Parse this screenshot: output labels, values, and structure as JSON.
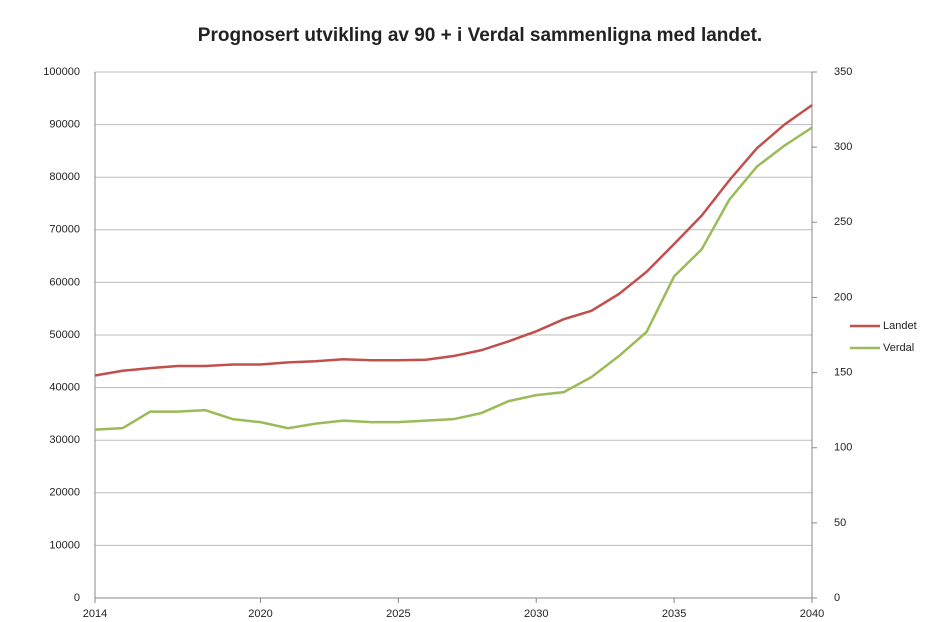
{
  "chart_data": {
    "type": "line",
    "title": "Prognosert utvikling av 90 + i Verdal sammenligna med landet.",
    "x": [
      2014,
      2015,
      2016,
      2017,
      2018,
      2019,
      2020,
      2021,
      2022,
      2023,
      2024,
      2025,
      2026,
      2027,
      2028,
      2029,
      2030,
      2031,
      2032,
      2033,
      2034,
      2035,
      2036,
      2037,
      2038,
      2039,
      2040
    ],
    "xlim": [
      2014,
      2040
    ],
    "xticks": [
      2014,
      2020,
      2025,
      2030,
      2035,
      2040
    ],
    "ylim": [
      0,
      100000
    ],
    "yticks": [
      0,
      10000,
      20000,
      30000,
      40000,
      50000,
      60000,
      70000,
      80000,
      90000,
      100000
    ],
    "y2lim": [
      0,
      350
    ],
    "y2ticks": [
      0,
      50,
      100,
      150,
      200,
      250,
      300,
      350
    ],
    "grid": true,
    "legend": "right",
    "series": [
      {
        "name": "Landet",
        "color": "#c0504d",
        "values": [
          42300,
          43200,
          43700,
          44100,
          44100,
          44400,
          44400,
          44800,
          45000,
          45400,
          45200,
          45200,
          45300,
          46000,
          47100,
          48800,
          50700,
          53000,
          54600,
          57800,
          62000,
          67300,
          72700,
          79400,
          85500,
          90000,
          93700
        ]
      },
      {
        "name": "Verdal",
        "color": "#9bbb59",
        "axis": "y2",
        "values": [
          112,
          113,
          124,
          124,
          125,
          119,
          117,
          113,
          116,
          118,
          117,
          117,
          118,
          119,
          123,
          131,
          135,
          137,
          147,
          161,
          177,
          214,
          232,
          265,
          287,
          301,
          313
        ]
      }
    ]
  }
}
